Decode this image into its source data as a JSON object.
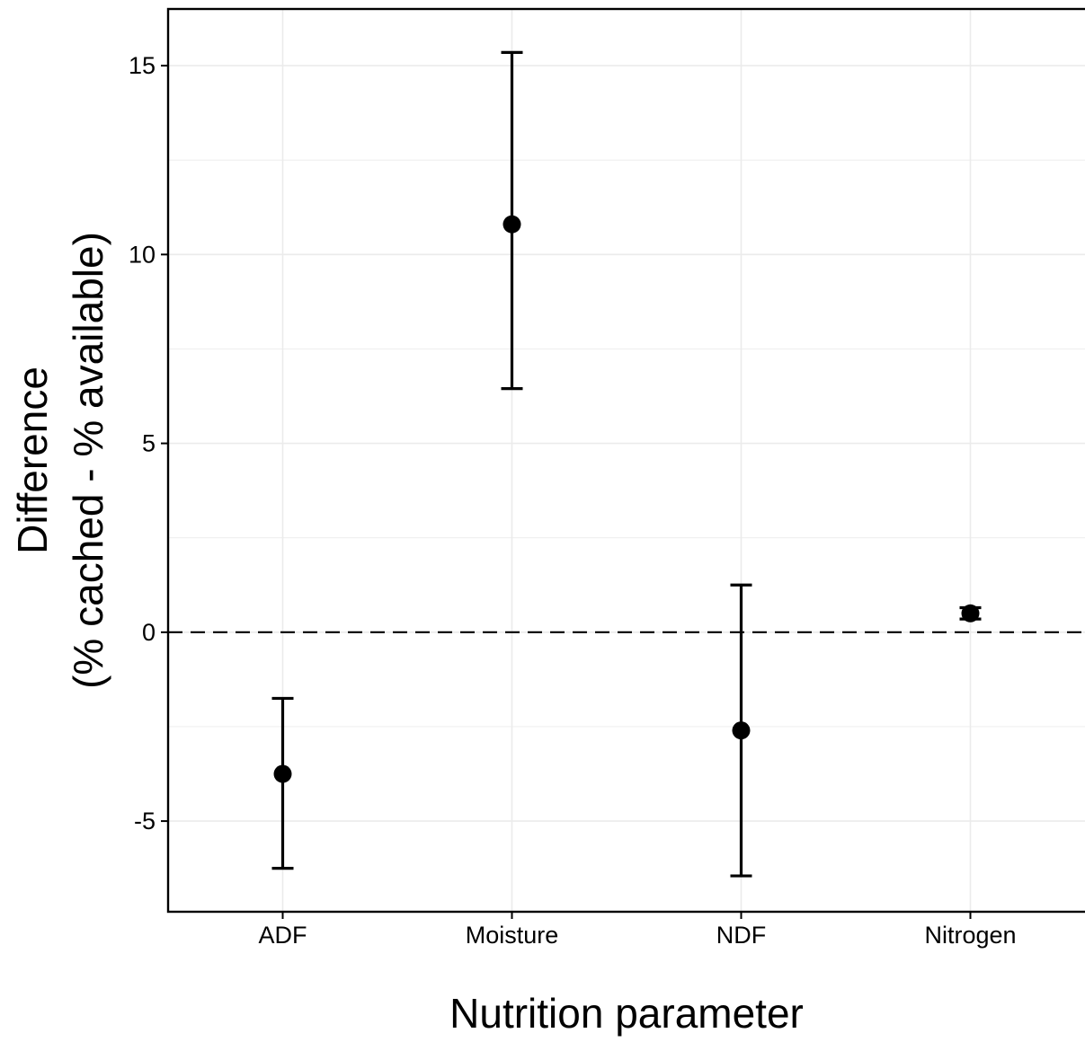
{
  "chart_data": {
    "type": "scatter",
    "subtype": "point-with-error-bars",
    "title": "",
    "xlabel": "Nutrition parameter",
    "ylabel_lines": [
      "Difference",
      "(% cached - % available)"
    ],
    "categories": [
      "ADF",
      "Moisture",
      "NDF",
      "Nitrogen"
    ],
    "points": [
      {
        "category": "ADF",
        "mean": -3.75,
        "lower": -6.25,
        "upper": -1.75
      },
      {
        "category": "Moisture",
        "mean": 10.8,
        "lower": 6.45,
        "upper": 15.35
      },
      {
        "category": "NDF",
        "mean": -2.6,
        "lower": -6.45,
        "upper": 1.25
      },
      {
        "category": "Nitrogen",
        "mean": 0.5,
        "lower": 0.35,
        "upper": 0.65
      }
    ],
    "ylim": [
      -7.4,
      16.5
    ],
    "yticks": [
      -5,
      0,
      5,
      10,
      15
    ],
    "ytick_labels": [
      "-5",
      "0",
      "5",
      "10",
      "15"
    ],
    "reference_line": {
      "y": 0,
      "style": "dashed"
    },
    "grid": true,
    "legend": "none",
    "colors": {
      "points": "#000000",
      "grid": "#ebebeb",
      "reference": "#000000"
    }
  }
}
